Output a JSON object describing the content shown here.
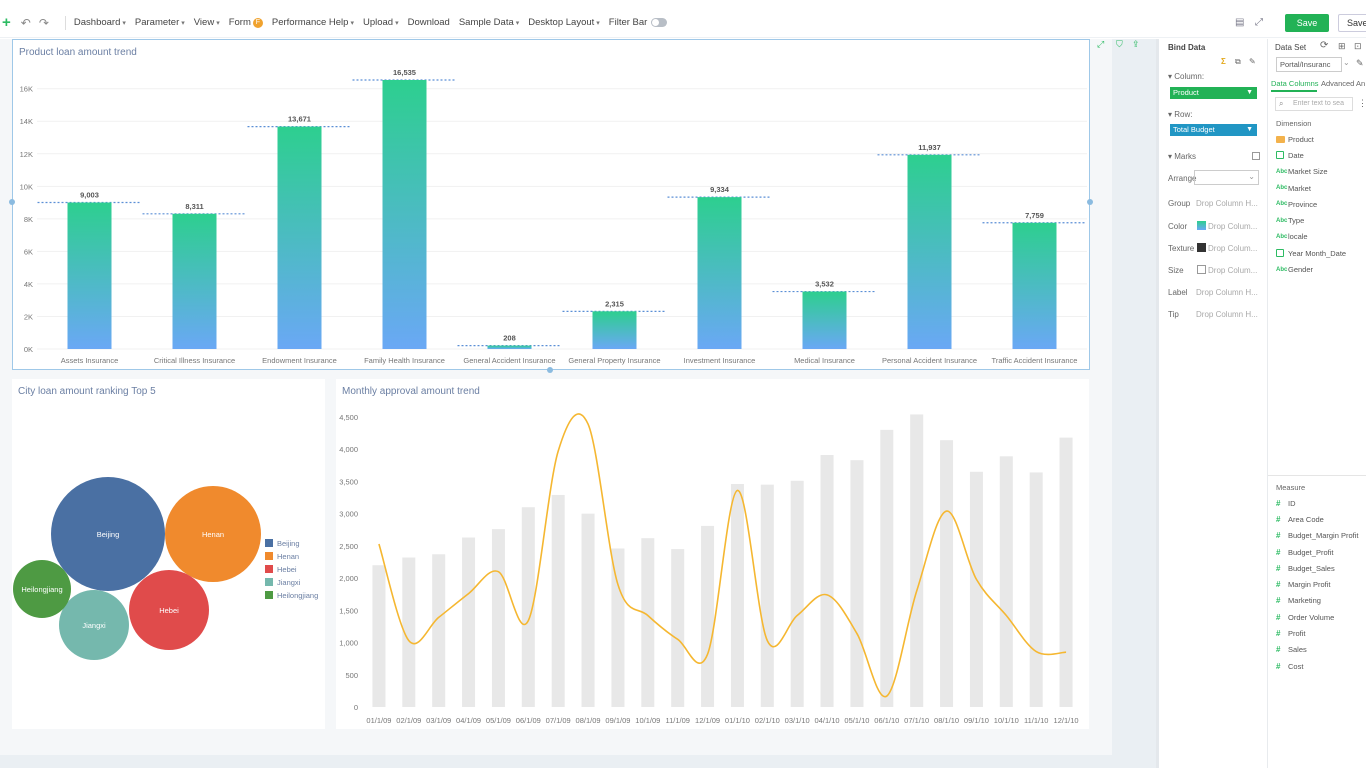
{
  "toolbar": {
    "items": [
      "Dashboard",
      "Parameter",
      "View",
      "Form",
      "Performance Help",
      "Upload",
      "Download",
      "Sample Data",
      "Desktop Layout",
      "Filter Bar"
    ],
    "form_badge": "F",
    "save_label": "Save",
    "save_as_label": "Save a"
  },
  "chart1": {
    "title": "Product loan amount trend",
    "ylim": [
      0,
      16535
    ],
    "yticks": [
      "0K",
      "2K",
      "4K",
      "6K",
      "8K",
      "10K",
      "12K",
      "14K",
      "16K"
    ],
    "categories": [
      "Assets Insurance",
      "Critical Illness Insurance",
      "Endowment Insurance",
      "Family Health Insurance",
      "General Accident Insurance",
      "General Property Insurance",
      "Investment Insurance",
      "Medical Insurance",
      "Personal Accident Insurance",
      "Traffic Accident Insurance"
    ],
    "values": [
      9003,
      8311,
      13671,
      16535,
      208,
      2315,
      9334,
      3532,
      11937,
      7759
    ],
    "labels": [
      "9,003",
      "8,311",
      "13,671",
      "16,535",
      "208",
      "2,315",
      "9,334",
      "3,532",
      "11,937",
      "7,759"
    ],
    "colors": {
      "top": "#2dcf8f",
      "bottom": "#6aa8f5",
      "ref": "#5b8fd6"
    }
  },
  "chart2": {
    "title": "City loan amount ranking Top 5",
    "cities": [
      "Beijing",
      "Henan",
      "Hebei",
      "Jiangxi",
      "Heilongjiang"
    ],
    "colors": [
      "#4a70a3",
      "#f08a2d",
      "#e04b4b",
      "#75b8ad",
      "#4e9a43"
    ]
  },
  "chart3": {
    "title": "Monthly approval amount trend",
    "yticks": [
      "0",
      "500",
      "1,000",
      "1,500",
      "2,000",
      "2,500",
      "3,000",
      "3,500",
      "4,000",
      "4,500"
    ],
    "x": [
      "01/1/09",
      "02/1/09",
      "03/1/09",
      "04/1/09",
      "05/1/09",
      "06/1/09",
      "07/1/09",
      "08/1/09",
      "09/1/09",
      "10/1/09",
      "11/1/09",
      "12/1/09",
      "01/1/10",
      "02/1/10",
      "03/1/10",
      "04/1/10",
      "05/1/10",
      "06/1/10",
      "07/1/10",
      "08/1/10",
      "09/1/10",
      "10/1/10",
      "11/1/10",
      "12/1/10"
    ],
    "bars": [
      2200,
      2320,
      2370,
      2630,
      2760,
      3100,
      3290,
      3000,
      2460,
      2620,
      2450,
      2810,
      3460,
      3450,
      3510,
      3910,
      3830,
      4300,
      4540,
      4140,
      3650,
      3890,
      3640,
      4180
    ],
    "line": [
      2530,
      1030,
      1390,
      1760,
      2100,
      1340,
      3970,
      4390,
      1900,
      1420,
      1050,
      820,
      3360,
      1030,
      1420,
      1740,
      1140,
      170,
      1800,
      3040,
      1980,
      1420,
      860,
      850
    ],
    "bar_color": "#e8e8e8",
    "line_color": "#f5b731"
  },
  "bind": {
    "title": "Bind Data",
    "column_label": "Column:",
    "column_value": "Product",
    "row_label": "Row:",
    "row_value": "Total Budget",
    "marks_label": "Marks",
    "arrange_label": "Arrange",
    "group_label": "Group",
    "color_label": "Color",
    "texture_label": "Texture",
    "size_label": "Size",
    "label_label": "Label",
    "tip_label": "Tip",
    "drop_hint": "Drop Column H...",
    "drop_hint_short": "Drop Colum..."
  },
  "dataset": {
    "title": "Data Set",
    "source": "Portal/Insuranc",
    "tab_columns": "Data Columns",
    "tab_advanced": "Advanced An",
    "search_placeholder": "Enter text to sea",
    "dimension_label": "Dimension",
    "dimensions": [
      "Product",
      "Date",
      "Market Size",
      "Market",
      "Province",
      "Type",
      "locale",
      "Year Month_Date",
      "Gender"
    ],
    "measure_label": "Measure",
    "measures": [
      "ID",
      "Area Code",
      "Budget_Margin Profit",
      "Budget_Profit",
      "Budget_Sales",
      "Margin Profit",
      "Marketing",
      "Order Volume",
      "Profit",
      "Sales",
      "Cost"
    ]
  }
}
